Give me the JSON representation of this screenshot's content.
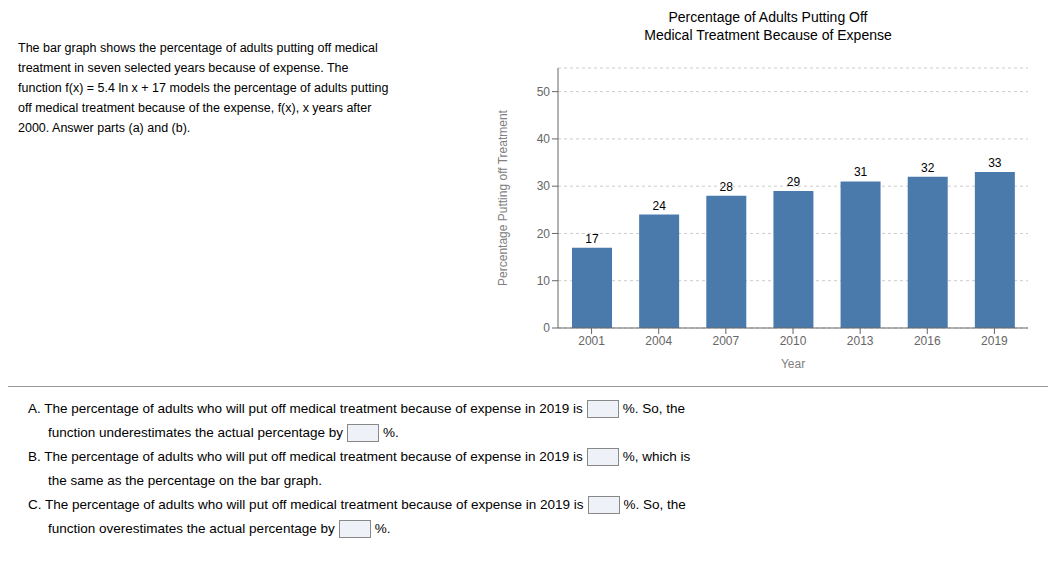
{
  "chart_data": {
    "type": "bar",
    "title": "Percentage of Adults Putting Off\nMedical Treatment Because of Expense",
    "xlabel": "Year",
    "ylabel": "Percentage Putting off Treatment",
    "categories": [
      "2001",
      "2004",
      "2007",
      "2010",
      "2013",
      "2016",
      "2019"
    ],
    "values": [
      17,
      24,
      28,
      29,
      31,
      32,
      33
    ],
    "color": "#4a7aab",
    "ylim": [
      0,
      55
    ],
    "yticks": [
      0,
      10,
      20,
      30,
      40,
      50
    ],
    "grid": true,
    "data_labels": true,
    "annotations": [
      [
        "The bar graph shows the percentage of adults putting off medical"
      ],
      [
        "treatment in seven selected years because of expense. The"
      ],
      [
        "function f(x) = 5.4 ln x + 17 models the percentage of adults putting"
      ],
      [
        "off medical treatment because of the expense, f(x), x years after"
      ],
      [
        "2000. Answer parts (a) and (b)."
      ],
      [
        "A. The percentage of adults who will put off medical treatment because of expense in 2019 is",
        "%. So, the"
      ],
      [
        "function underestimates the actual percentage by",
        "%."
      ],
      [
        "B. The percentage of adults who will put off medical treatment because of expense in 2019 is",
        "%, which is"
      ],
      [
        "the same as the percentage on the bar graph."
      ],
      [
        "C. The percentage of adults who will put off medical treatment because of expense in 2019 is",
        "%. So, the"
      ],
      [
        "function overestimates the actual percentage by",
        "%."
      ]
    ]
  }
}
